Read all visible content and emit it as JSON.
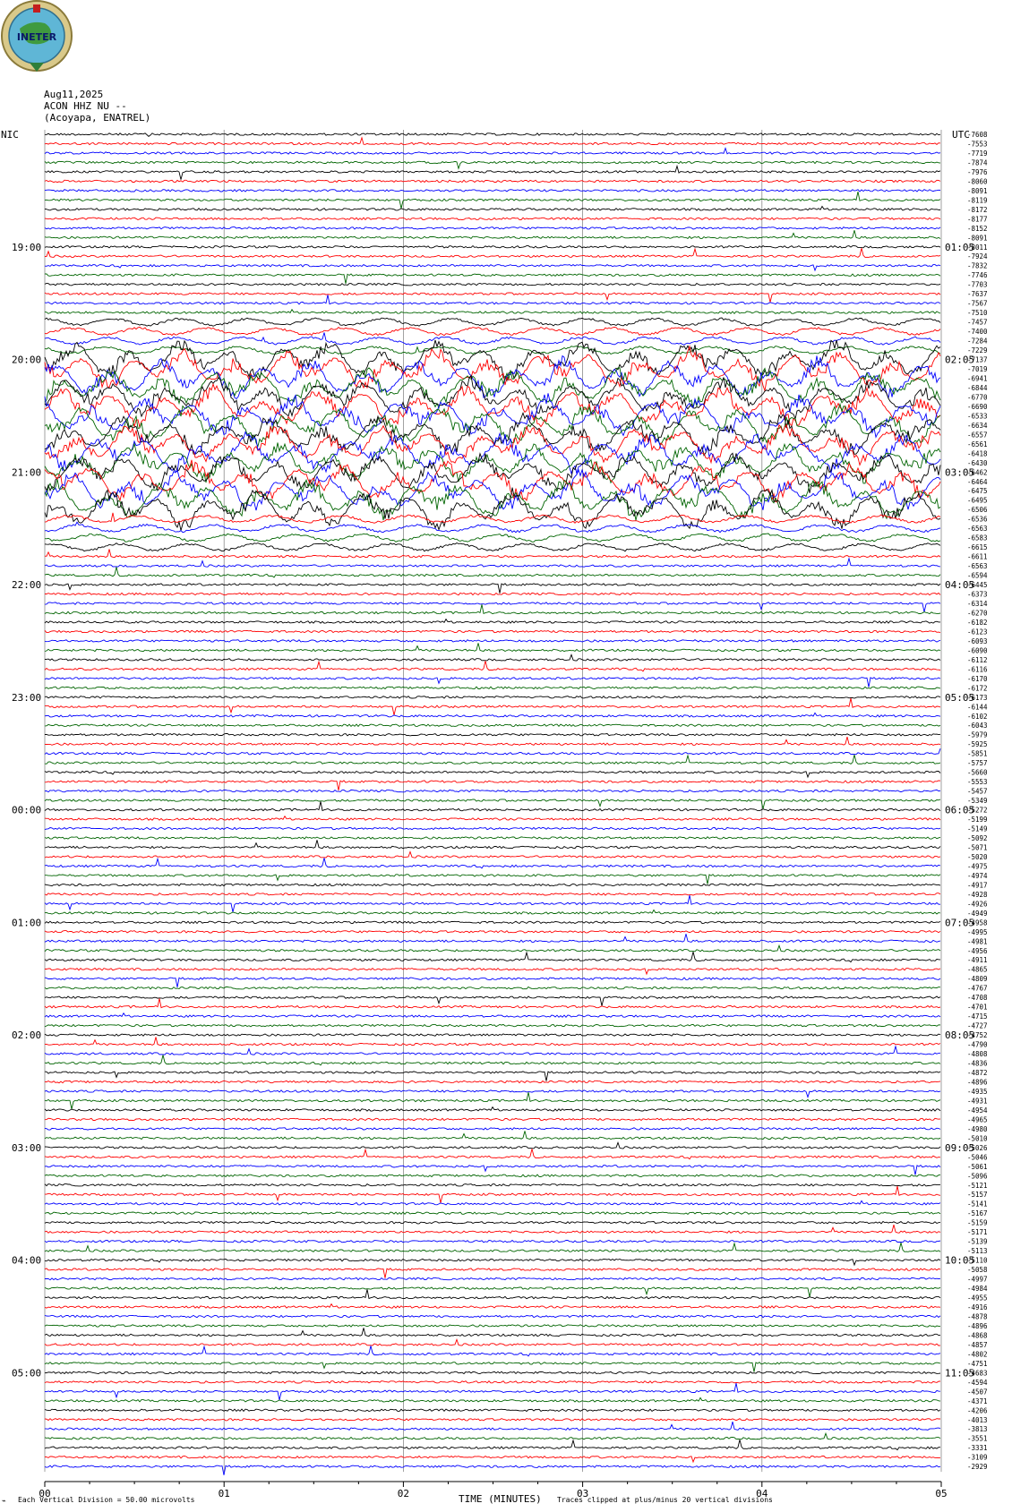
{
  "header": {
    "date": "Aug11,2025",
    "station": "ACON HHZ NU --",
    "location": "(Acoyapa, ENATREL)",
    "left_zone": "NIC",
    "right_zone": "UTC",
    "logo_text": "INETER"
  },
  "footer": {
    "division_note": "Each Vertical Division =   50.00 microvolts",
    "xlabel": "TIME (MINUTES)",
    "clip_note": "Traces clipped at plus/minus 20 vertical divisions"
  },
  "chart_data": {
    "type": "line",
    "title": "",
    "xlabel": "TIME (MINUTES)",
    "xlim": [
      0,
      5
    ],
    "x_ticks": [
      "00",
      "01",
      "02",
      "03",
      "04",
      "05"
    ],
    "grid": "vertical lines at each minute",
    "left_hour_labels": [
      "19:00",
      "20:00",
      "21:00",
      "22:00",
      "23:00",
      "00:00",
      "01:00",
      "02:00",
      "03:00",
      "04:00",
      "05:00"
    ],
    "right_hour_labels": [
      "01:05",
      "02:05",
      "03:05",
      "04:05",
      "05:05",
      "06:05",
      "07:05",
      "08:05",
      "09:05",
      "10:05",
      "11:05"
    ],
    "trace_colors": [
      "#000000",
      "#ff0000",
      "#0000ff",
      "#006400"
    ],
    "trace_offsets": [
      "-7608",
      "-7553",
      "-7719",
      "-7874",
      "-7976",
      "-8060",
      "-8091",
      "-8119",
      "-8172",
      "-8177",
      "-8152",
      "-8091",
      "-8011",
      "-7924",
      "-7832",
      "-7746",
      "-7703",
      "-7637",
      "-7567",
      "-7510",
      "-7457",
      "-7400",
      "-7284",
      "-7229",
      "-7137",
      "-7019",
      "-6941",
      "-6844",
      "-6770",
      "-6690",
      "-6533",
      "-6634",
      "-6557",
      "-6561",
      "-6418",
      "-6430",
      "-6462",
      "-6464",
      "-6475",
      "-6495",
      "-6506",
      "-6536",
      "-6563",
      "-6583",
      "-6615",
      "-6611",
      "-6563",
      "-6594",
      "-6445",
      "-6373",
      "-6314",
      "-6270",
      "-6182",
      "-6123",
      "-6093",
      "-6090",
      "-6112",
      "-6116",
      "-6170",
      "-6172",
      "-6173",
      "-6144",
      "-6102",
      "-6043",
      "-5979",
      "-5925",
      "-5851",
      "-5757",
      "-5660",
      "-5553",
      "-5457",
      "-5349",
      "-5272",
      "-5199",
      "-5149",
      "-5092",
      "-5071",
      "-5020",
      "-4975",
      "-4974",
      "-4917",
      "-4928",
      "-4926",
      "-4949",
      "-4958",
      "-4995",
      "-4981",
      "-4956",
      "-4911",
      "-4865",
      "-4809",
      "-4767",
      "-4708",
      "-4701",
      "-4715",
      "-4727",
      "-4752",
      "-4790",
      "-4808",
      "-4836",
      "-4872",
      "-4896",
      "-4935",
      "-4931",
      "-4954",
      "-4965",
      "-4980",
      "-5010",
      "-5026",
      "-5046",
      "-5061",
      "-5096",
      "-5121",
      "-5157",
      "-5141",
      "-5167",
      "-5159",
      "-5171",
      "-5139",
      "-5113",
      "-5110",
      "-5058",
      "-4997",
      "-4984",
      "-4955",
      "-4916",
      "-4878",
      "-4896",
      "-4868",
      "-4857",
      "-4802",
      "-4751",
      "-4683",
      "-4594",
      "-4507",
      "-4371",
      "-4206",
      "-4013",
      "-3813",
      "-3551",
      "-3331",
      "-3109",
      "-2929"
    ]
  }
}
